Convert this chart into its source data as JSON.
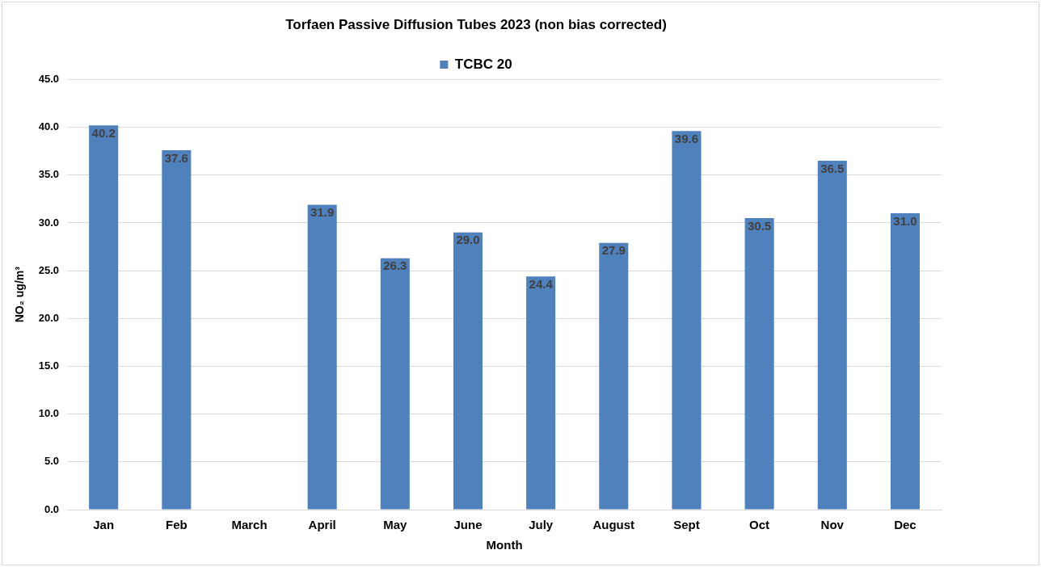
{
  "chart_data": {
    "type": "bar",
    "title": "Torfaen Passive Diffusion Tubes 2023 (non bias corrected)",
    "xlabel": "Month",
    "ylabel": "NO₂ ug/m³",
    "categories": [
      "Jan",
      "Feb",
      "March",
      "April",
      "May",
      "June",
      "July",
      "August",
      "Sept",
      "Oct",
      "Nov",
      "Dec"
    ],
    "series": [
      {
        "name": "TCBC 20",
        "color": "#4f81bd",
        "values": [
          40.2,
          37.6,
          null,
          31.9,
          26.3,
          29.0,
          24.4,
          27.9,
          39.6,
          30.5,
          36.5,
          31.0
        ],
        "value_labels": [
          "40.2",
          "37.6",
          null,
          "31.9",
          "26.3",
          "29.0",
          "24.4",
          "27.9",
          "39.6",
          "30.5",
          "36.5",
          "31.0"
        ]
      }
    ],
    "ylim": [
      0,
      45
    ],
    "yticks": [
      {
        "value": 0,
        "label": "0.0"
      },
      {
        "value": 5,
        "label": "5.0"
      },
      {
        "value": 10,
        "label": "10.0"
      },
      {
        "value": 15,
        "label": "15.0"
      },
      {
        "value": 20,
        "label": "20.0"
      },
      {
        "value": 25,
        "label": "25.0"
      },
      {
        "value": 30,
        "label": "30.0"
      },
      {
        "value": 35,
        "label": "35.0"
      },
      {
        "value": 40,
        "label": "40.0"
      },
      {
        "value": 45,
        "label": "45.0"
      }
    ],
    "grid": "y",
    "legend": "top"
  }
}
